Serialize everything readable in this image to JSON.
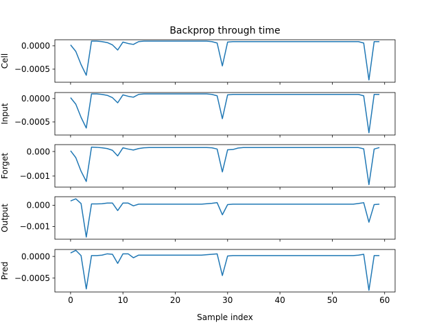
{
  "chart_data": {
    "type": "line",
    "title": "Backprop through time",
    "xlabel": "Sample index",
    "xlim": [
      -3,
      62
    ],
    "xticks": [
      0,
      10,
      20,
      30,
      40,
      50,
      60
    ],
    "color": "#1f77b4",
    "x": [
      0,
      1,
      2,
      3,
      4,
      5,
      6,
      7,
      8,
      9,
      10,
      11,
      12,
      13,
      14,
      15,
      16,
      17,
      18,
      19,
      20,
      21,
      22,
      23,
      24,
      25,
      26,
      27,
      28,
      29,
      30,
      31,
      32,
      33,
      34,
      35,
      36,
      37,
      38,
      39,
      40,
      41,
      42,
      43,
      44,
      45,
      46,
      47,
      48,
      49,
      50,
      51,
      52,
      53,
      54,
      55,
      56,
      57,
      58,
      59
    ],
    "panels": [
      {
        "ylabel": "Cell",
        "ylim": [
          -0.00078,
          0.00013
        ],
        "yticks": [
          0.0,
          -0.0005
        ],
        "ytick_labels": [
          "0.0000",
          "−0.0005"
        ],
        "values": [
          2e-05,
          -0.00012,
          -0.0004,
          -0.00063,
          0.0001,
          0.0001,
          9e-05,
          7e-05,
          2e-05,
          -9e-05,
          8e-05,
          5e-05,
          3e-05,
          9e-05,
          0.0001,
          0.0001,
          0.0001,
          0.0001,
          0.0001,
          0.0001,
          0.0001,
          0.0001,
          0.0001,
          0.0001,
          0.0001,
          0.0001,
          0.0001,
          9e-05,
          6e-05,
          -0.00043,
          8e-05,
          9e-05,
          9e-05,
          9e-05,
          9e-05,
          9e-05,
          9e-05,
          9e-05,
          9e-05,
          9e-05,
          9e-05,
          9e-05,
          9e-05,
          9e-05,
          9e-05,
          9e-05,
          9e-05,
          9e-05,
          9e-05,
          9e-05,
          9e-05,
          9e-05,
          9e-05,
          9e-05,
          9e-05,
          9e-05,
          6e-05,
          -0.00073,
          9e-05,
          9e-05
        ]
      },
      {
        "ylabel": "Input",
        "ylim": [
          -0.00078,
          0.00013
        ],
        "yticks": [
          0.0,
          -0.0005
        ],
        "ytick_labels": [
          "0.0000",
          "−0.0005"
        ],
        "values": [
          2e-05,
          -0.00012,
          -0.0004,
          -0.00063,
          0.0001,
          0.0001,
          9e-05,
          7e-05,
          2e-05,
          -9e-05,
          8e-05,
          5e-05,
          3e-05,
          9e-05,
          0.0001,
          0.0001,
          0.0001,
          0.0001,
          0.0001,
          0.0001,
          0.0001,
          0.0001,
          0.0001,
          0.0001,
          0.0001,
          0.0001,
          0.0001,
          9e-05,
          6e-05,
          -0.00043,
          8e-05,
          9e-05,
          9e-05,
          9e-05,
          9e-05,
          9e-05,
          9e-05,
          9e-05,
          9e-05,
          9e-05,
          9e-05,
          9e-05,
          9e-05,
          9e-05,
          9e-05,
          9e-05,
          9e-05,
          9e-05,
          9e-05,
          9e-05,
          9e-05,
          9e-05,
          9e-05,
          9e-05,
          9e-05,
          9e-05,
          6e-05,
          -0.00073,
          9e-05,
          9e-05
        ]
      },
      {
        "ylabel": "Forget",
        "ylim": [
          -0.00145,
          0.00028
        ],
        "yticks": [
          0.0,
          -0.001
        ],
        "ytick_labels": [
          "0.000",
          "−0.001"
        ],
        "values": [
          3e-05,
          -0.00025,
          -0.0008,
          -0.00122,
          0.00018,
          0.00017,
          0.00015,
          0.00012,
          5e-05,
          -0.00018,
          0.00015,
          0.0001,
          6e-05,
          0.00012,
          0.00015,
          0.00016,
          0.00016,
          0.00016,
          0.00016,
          0.00016,
          0.00016,
          0.00016,
          0.00016,
          0.00016,
          0.00016,
          0.00016,
          0.00016,
          0.00015,
          0.0001,
          -0.00083,
          7e-05,
          8e-05,
          0.00014,
          0.00016,
          0.00016,
          0.00016,
          0.00016,
          0.00016,
          0.00016,
          0.00016,
          0.00016,
          0.00016,
          0.00016,
          0.00016,
          0.00016,
          0.00016,
          0.00016,
          0.00016,
          0.00016,
          0.00016,
          0.00016,
          0.00016,
          0.00016,
          0.00016,
          0.00016,
          0.00016,
          0.00011,
          -0.00135,
          0.0001,
          0.00016
        ]
      },
      {
        "ylabel": "Output",
        "ylim": [
          -0.0016,
          0.0004
        ],
        "yticks": [
          0.0,
          -0.001
        ],
        "ytick_labels": [
          "0.000",
          "−0.001"
        ],
        "values": [
          0.0002,
          0.0003,
          8e-05,
          -0.0015,
          6e-05,
          6e-05,
          7e-05,
          0.0001,
          0.0001,
          -0.00025,
          0.0001,
          0.0001,
          -3e-05,
          5e-05,
          5e-05,
          5e-05,
          5e-05,
          5e-05,
          5e-05,
          5e-05,
          5e-05,
          5e-05,
          5e-05,
          5e-05,
          5e-05,
          5e-05,
          7e-05,
          9e-05,
          0.00012,
          -0.00045,
          3e-05,
          5e-05,
          5e-05,
          5e-05,
          5e-05,
          5e-05,
          5e-05,
          5e-05,
          5e-05,
          5e-05,
          5e-05,
          5e-05,
          5e-05,
          5e-05,
          5e-05,
          5e-05,
          5e-05,
          5e-05,
          5e-05,
          5e-05,
          5e-05,
          5e-05,
          5e-05,
          5e-05,
          5e-05,
          8e-05,
          0.00012,
          -0.0008,
          3e-05,
          5e-05
        ]
      },
      {
        "ylabel": "Pred",
        "ylim": [
          -0.00082,
          0.00016
        ],
        "yticks": [
          0.0,
          -0.0005
        ],
        "ytick_labels": [
          "0.0000",
          "−0.0005"
        ],
        "values": [
          8e-05,
          0.00014,
          2e-05,
          -0.00075,
          2e-05,
          2e-05,
          3e-05,
          6e-05,
          5e-05,
          -0.00016,
          6e-05,
          6e-05,
          -3e-05,
          3e-05,
          3e-05,
          3e-05,
          3e-05,
          3e-05,
          3e-05,
          3e-05,
          3e-05,
          3e-05,
          3e-05,
          3e-05,
          3e-05,
          3e-05,
          4e-05,
          5e-05,
          6e-05,
          -0.00044,
          1e-05,
          2e-05,
          2e-05,
          2e-05,
          2e-05,
          2e-05,
          2e-05,
          2e-05,
          2e-05,
          2e-05,
          2e-05,
          2e-05,
          2e-05,
          2e-05,
          2e-05,
          2e-05,
          2e-05,
          2e-05,
          2e-05,
          2e-05,
          2e-05,
          2e-05,
          2e-05,
          2e-05,
          2e-05,
          3e-05,
          5e-05,
          -0.00078,
          2e-05,
          2e-05
        ]
      }
    ]
  }
}
